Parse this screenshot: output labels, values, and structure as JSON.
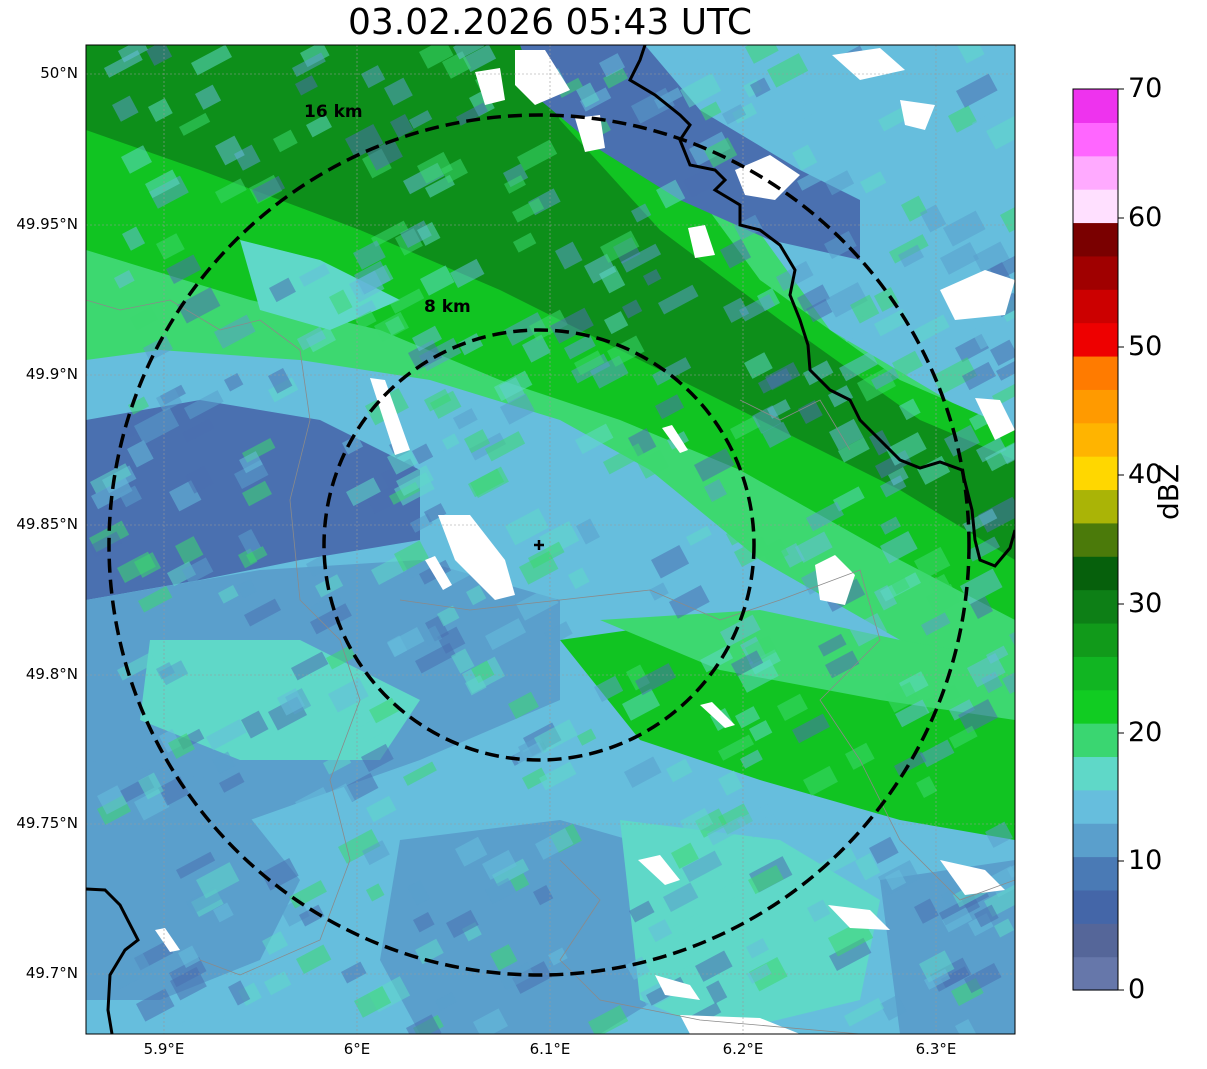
{
  "map": {
    "title": "03.02.2026 05:43 UTC",
    "center_marker": "plus-icon",
    "lat_ticks": [
      "50°N",
      "49.95°N",
      "49.9°N",
      "49.85°N",
      "49.8°N",
      "49.75°N",
      "49.7°N"
    ],
    "lon_ticks": [
      "5.9°E",
      "6°E",
      "6.1°E",
      "6.2°E",
      "6.3°E"
    ],
    "range_rings": [
      {
        "label": "16 km",
        "radius_km": 16
      },
      {
        "label": "8 km",
        "radius_km": 8
      }
    ]
  },
  "colorbar": {
    "label": "dBZ",
    "ticks": [
      "0",
      "10",
      "20",
      "30",
      "40",
      "50",
      "60",
      "70"
    ],
    "colors": [
      "#6677aa",
      "#556699",
      "#4466a8",
      "#4a7ab5",
      "#5a9fcc",
      "#66bedd",
      "#5fd8c8",
      "#3ad671",
      "#11cc22",
      "#11b522",
      "#119a1a",
      "#0d7f16",
      "#06600c",
      "#4b7a0a",
      "#aab406",
      "#ffd700",
      "#ffb400",
      "#ff9a00",
      "#ff7b00",
      "#ee0000",
      "#cc0000",
      "#a00000",
      "#7a0000",
      "#ffe0ff",
      "#ffaaff",
      "#ff66ff",
      "#ee33ee"
    ]
  },
  "palette": {
    "ring": "#000000",
    "border": "#000000",
    "green_dark": "#0d8f1a",
    "green": "#11c422",
    "green_light": "#3dd870",
    "teal": "#5fd8c8",
    "cyan": "#66bedd",
    "blue": "#5a9fcc",
    "blue_dark": "#4a70b0"
  }
}
